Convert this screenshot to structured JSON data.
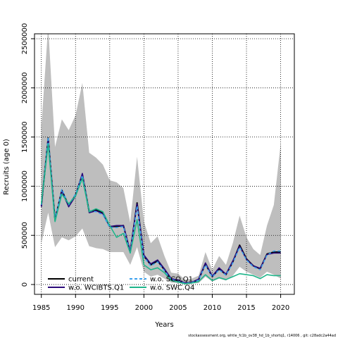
{
  "chart_data": {
    "type": "line",
    "title": "",
    "xlabel": "Years",
    "ylabel": "Recruits (age 0)",
    "xlim": [
      1984,
      2022
    ],
    "ylim": [
      -100000,
      2550000
    ],
    "x_ticks": [
      1985,
      1990,
      1995,
      2000,
      2005,
      2010,
      2015,
      2020
    ],
    "y_ticks": [
      0,
      500000,
      1000000,
      1500000,
      2000000,
      2500000
    ],
    "y_tick_labels": [
      "0",
      "500000",
      "1000000",
      "1500000",
      "2000000",
      "2500000"
    ],
    "grid": true,
    "legend_position": "bottom-left",
    "x": [
      1985,
      1986,
      1987,
      1988,
      1989,
      1990,
      1991,
      1992,
      1993,
      1994,
      1995,
      1996,
      1997,
      1998,
      1999,
      2000,
      2001,
      2002,
      2003,
      2004,
      2005,
      2006,
      2007,
      2008,
      2009,
      2010,
      2011,
      2012,
      2013,
      2014,
      2015,
      2016,
      2017,
      2018,
      2019,
      2020
    ],
    "band": {
      "color": "#bebebe",
      "upper": [
        1600000,
        2630000,
        1400000,
        1680000,
        1570000,
        1720000,
        2050000,
        1340000,
        1290000,
        1220000,
        1060000,
        1040000,
        980000,
        630000,
        1300000,
        640000,
        420000,
        490000,
        290000,
        120000,
        110000,
        50000,
        60000,
        90000,
        330000,
        150000,
        290000,
        200000,
        420000,
        700000,
        480000,
        360000,
        300000,
        600000,
        810000,
        1430000
      ],
      "lower": [
        420000,
        730000,
        380000,
        480000,
        450000,
        490000,
        570000,
        390000,
        370000,
        360000,
        330000,
        330000,
        330000,
        200000,
        380000,
        130000,
        80000,
        100000,
        60000,
        20000,
        15000,
        5000,
        10000,
        15000,
        80000,
        30000,
        60000,
        40000,
        90000,
        180000,
        130000,
        100000,
        70000,
        130000,
        100000,
        60000
      ]
    },
    "series": [
      {
        "name": "current",
        "color": "#000000",
        "dash": "solid",
        "values": [
          800000,
          1490000,
          660000,
          960000,
          800000,
          910000,
          1120000,
          740000,
          760000,
          730000,
          590000,
          590000,
          600000,
          330000,
          830000,
          290000,
          200000,
          240000,
          150000,
          55000,
          40000,
          15000,
          20000,
          50000,
          210000,
          80000,
          160000,
          100000,
          230000,
          400000,
          260000,
          190000,
          160000,
          310000,
          330000,
          330000
        ]
      },
      {
        "name": "w.o. WCIBTS.Q1",
        "color": "#2b0a7a",
        "dash": "solid",
        "values": [
          790000,
          1480000,
          650000,
          950000,
          790000,
          900000,
          1130000,
          730000,
          750000,
          720000,
          590000,
          600000,
          600000,
          340000,
          820000,
          300000,
          210000,
          250000,
          160000,
          60000,
          45000,
          17000,
          22000,
          55000,
          220000,
          85000,
          170000,
          105000,
          240000,
          390000,
          255000,
          190000,
          165000,
          305000,
          320000,
          320000
        ]
      },
      {
        "name": "w.o. SCO.Q1",
        "color": "#3aa0ee",
        "dash": "dashed",
        "values": [
          810000,
          1500000,
          670000,
          970000,
          810000,
          920000,
          1110000,
          750000,
          740000,
          710000,
          580000,
          580000,
          590000,
          320000,
          800000,
          280000,
          190000,
          230000,
          140000,
          50000,
          35000,
          12000,
          18000,
          45000,
          200000,
          75000,
          150000,
          95000,
          220000,
          380000,
          250000,
          180000,
          150000,
          300000,
          340000,
          340000
        ]
      },
      {
        "name": "w.o. SWC.Q4",
        "color": "#1fb58a",
        "dash": "solid",
        "values": [
          820000,
          1430000,
          640000,
          920000,
          820000,
          900000,
          1080000,
          740000,
          770000,
          740000,
          600000,
          480000,
          520000,
          320000,
          660000,
          200000,
          150000,
          170000,
          120000,
          40000,
          25000,
          8000,
          15000,
          30000,
          100000,
          40000,
          70000,
          50000,
          80000,
          110000,
          100000,
          90000,
          60000,
          100000,
          90000,
          90000
        ]
      }
    ]
  },
  "legend": {
    "items": [
      {
        "label": "current",
        "color": "#000000",
        "dash": "solid"
      },
      {
        "label": "w.o. WCIBTS.Q1",
        "color": "#2b0a7a",
        "dash": "solid"
      },
      {
        "label": "w.o. SCO.Q1",
        "color": "#3aa0ee",
        "dash": "dashed"
      },
      {
        "label": "w.o. SWC.Q4",
        "color": "#1fb58a",
        "dash": "solid"
      }
    ]
  },
  "footer": {
    "text": "stockassessment.org,  whtle_fc1b_ov38_hd_1b_shortq1,  r14006 ,  git: c28adc2a44ad"
  }
}
